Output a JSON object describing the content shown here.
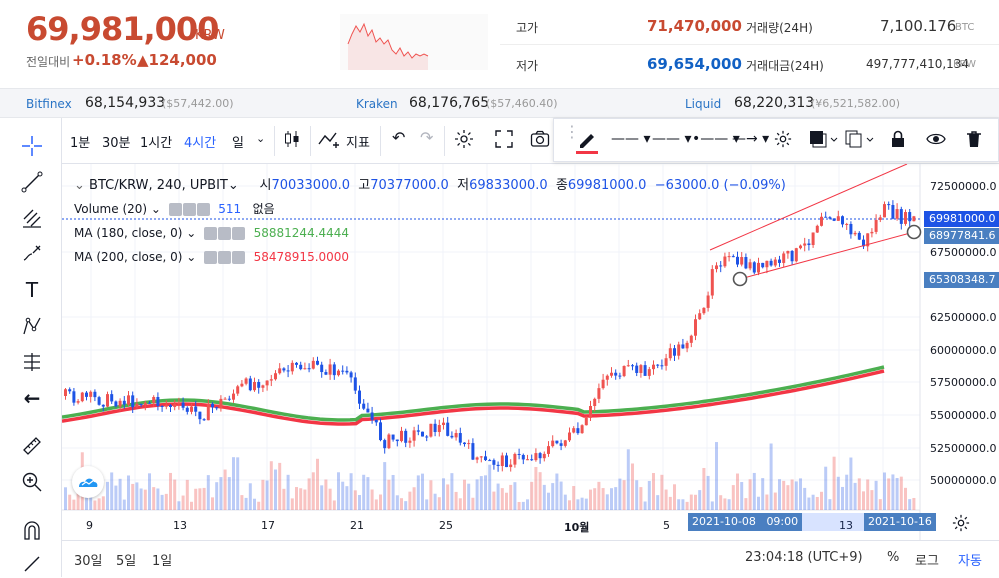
{
  "header": {
    "price": "69,981,000",
    "price_unit": "KRW",
    "change_label": "전일대비",
    "change_pct": "+0.18%",
    "change_abs": "▲124,000",
    "high_label": "고가",
    "high_value": "71,470,000",
    "low_label": "저가",
    "low_value": "69,654,000",
    "volume_label": "거래량(24H)",
    "volume_value": "7,100.176",
    "volume_unit": "BTC",
    "turnover_label": "거래대금(24H)",
    "turnover_value": "497,777,410,134",
    "turnover_unit": "KRW"
  },
  "exchanges": [
    {
      "name": "Bitfinex",
      "value": "68,154,933",
      "sub": "($57,442.00)"
    },
    {
      "name": "Kraken",
      "value": "68,176,765",
      "sub": "($57,460.40)"
    },
    {
      "name": "Liquid",
      "value": "68,220,313",
      "sub": "(¥6,521,582.00)"
    }
  ],
  "toolbar": {
    "intervals": [
      "1분",
      "30분",
      "1시간",
      "4시간",
      "일"
    ],
    "indicators_label": "지표"
  },
  "legend": {
    "symbol": "BTC/KRW, 240, UPBIT",
    "o_label": "시",
    "o_value": "70033000.0",
    "h_label": "고",
    "h_value": "70377000.0",
    "l_label": "저",
    "l_value": "69833000.0",
    "c_label": "종",
    "c_value": "69981000.0",
    "change": "−63000.0 (−0.09%)",
    "volume_title": "Volume (20)",
    "volume_value": "511",
    "volume_extra": "없음",
    "ma180_title": "MA (180, close, 0)",
    "ma180_value": "58881244.4444",
    "ma200_title": "MA (200, close, 0)",
    "ma200_value": "58478915.0000"
  },
  "price_axis": [
    "72500000.0",
    "67500000.0",
    "62500000.0",
    "60000000.0",
    "57500000.0",
    "55000000.0",
    "52500000.0",
    "50000000.0"
  ],
  "price_tags": {
    "last": "69981000.0",
    "line1": "68977841.6",
    "line2": "65308348.7"
  },
  "time_axis": [
    "9",
    "13",
    "17",
    "21",
    "25",
    "10월",
    "5",
    "13"
  ],
  "time_tags": {
    "start_date": "2021-10-08",
    "start_time": "09:00",
    "end_date": "2021-10-16"
  },
  "bottom": {
    "ranges": [
      "30일",
      "5일",
      "1일"
    ],
    "clock": "23:04:18 (UTC+9)",
    "pct": "%",
    "log": "로그",
    "auto": "자동"
  },
  "colors": {
    "up": "#ef5350",
    "down": "#1e53e5",
    "ma180": "#4caf50",
    "ma200": "#f23645",
    "accent": "#2962ff"
  }
}
